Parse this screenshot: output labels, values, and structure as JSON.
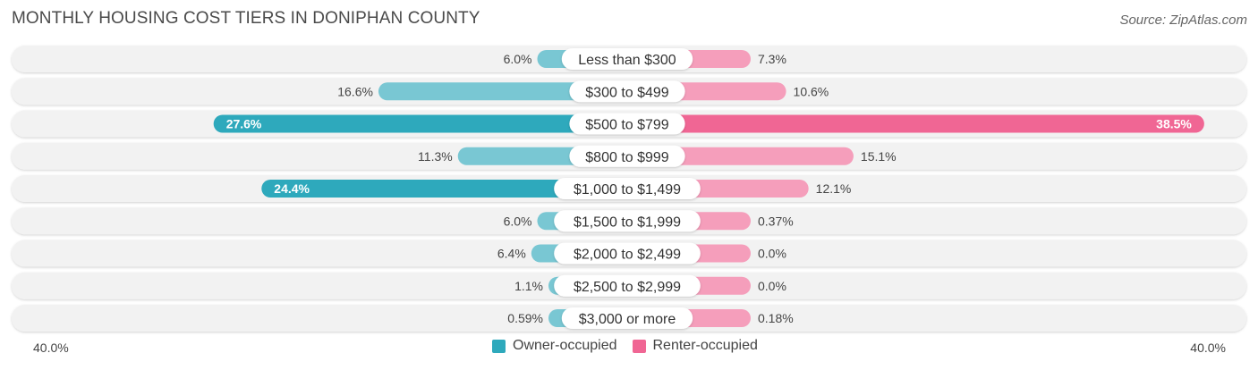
{
  "header": {
    "title": "MONTHLY HOUSING COST TIERS IN DONIPHAN COUNTY",
    "source": "Source: ZipAtlas.com"
  },
  "colors": {
    "owner": "#2ea9bc",
    "owner_light": "#79c7d3",
    "renter": "#f06694",
    "renter_light": "#f59ebb",
    "track": "#f2f2f2"
  },
  "chart_data": {
    "type": "bar",
    "title": "MONTHLY HOUSING COST TIERS IN DONIPHAN COUNTY",
    "orientation": "diverging-horizontal",
    "categories": [
      "Less than $300",
      "$300 to $499",
      "$500 to $799",
      "$800 to $999",
      "$1,000 to $1,499",
      "$1,500 to $1,999",
      "$2,000 to $2,499",
      "$2,500 to $2,999",
      "$3,000 or more"
    ],
    "series": [
      {
        "name": "Owner-occupied",
        "values": [
          6.0,
          16.6,
          27.6,
          11.3,
          24.4,
          6.0,
          6.4,
          1.1,
          0.59
        ],
        "labels": [
          "6.0%",
          "16.6%",
          "27.6%",
          "11.3%",
          "24.4%",
          "6.0%",
          "6.4%",
          "1.1%",
          "0.59%"
        ]
      },
      {
        "name": "Renter-occupied",
        "values": [
          7.3,
          10.6,
          38.5,
          15.1,
          12.1,
          0.37,
          0.0,
          0.0,
          0.18
        ],
        "labels": [
          "7.3%",
          "10.6%",
          "38.5%",
          "15.1%",
          "12.1%",
          "0.37%",
          "0.0%",
          "0.0%",
          "0.18%"
        ]
      }
    ],
    "xlim": [
      -40,
      40
    ],
    "axis_left_label": "40.0%",
    "axis_right_label": "40.0%",
    "legend": [
      "Owner-occupied",
      "Renter-occupied"
    ],
    "legend_position": "bottom-center"
  }
}
